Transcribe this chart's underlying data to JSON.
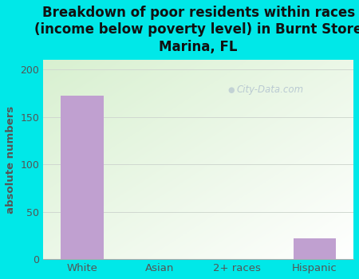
{
  "categories": [
    "White",
    "Asian",
    "2+ races",
    "Hispanic"
  ],
  "values": [
    172,
    0,
    0,
    22
  ],
  "bar_color": "#c0a0d0",
  "title": "Breakdown of poor residents within races\n(income below poverty level) in Burnt Store\nMarina, FL",
  "ylabel": "absolute numbers",
  "ylim": [
    0,
    210
  ],
  "yticks": [
    0,
    50,
    100,
    150,
    200
  ],
  "background_outer": "#00e8e8",
  "background_inner_topleft": "#d8f0d0",
  "background_inner_bottomright": "#ffffff",
  "grid_color": "#d0d8d0",
  "watermark_text": "City-Data.com",
  "title_fontsize": 12,
  "title_color": "#111111",
  "tick_label_color": "#555555",
  "ylabel_color": "#555555",
  "bar_width": 0.55
}
